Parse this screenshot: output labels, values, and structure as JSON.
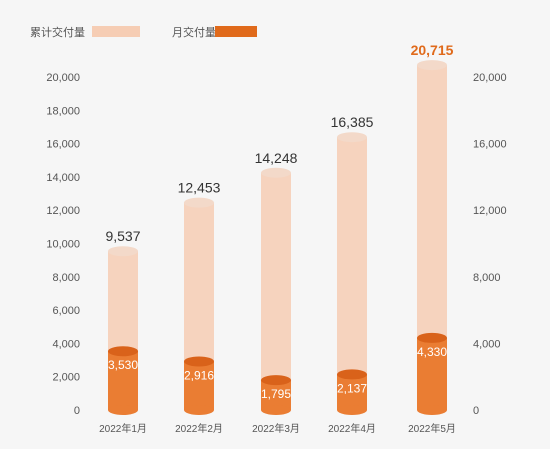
{
  "chart_data": {
    "type": "bar",
    "categories": [
      "2022年1月",
      "2022年2月",
      "2022年3月",
      "2022年4月",
      "2022年5月"
    ],
    "series": [
      {
        "name": "累计交付量",
        "values": [
          9537,
          12453,
          14248,
          16385,
          20715
        ],
        "labels": [
          "9,537",
          "12,453",
          "14,248",
          "16,385",
          "20,715"
        ]
      },
      {
        "name": "月交付量",
        "values": [
          3530,
          2916,
          1795,
          2137,
          4330
        ],
        "labels": [
          "3,530",
          "2,916",
          "1,795",
          "2,137",
          "4,330"
        ]
      }
    ],
    "ylim": [
      0,
      20000
    ],
    "yticks": [
      "0",
      "2,000",
      "4,000",
      "6,000",
      "8,000",
      "10,000",
      "12,000",
      "14,000",
      "16,000",
      "18,000",
      "20,000"
    ],
    "right_yticks": [
      "0",
      "4,000",
      "8,000",
      "12,000",
      "16,000",
      "20,000"
    ],
    "highlight_color": "#e06a1b",
    "colors": {
      "cumulative": "#f6cdb4",
      "monthly": "#ea7d33",
      "monthly_top": "#d9621a",
      "background": "#f6f6f6"
    },
    "grid": false,
    "legend_position": "top-left"
  }
}
